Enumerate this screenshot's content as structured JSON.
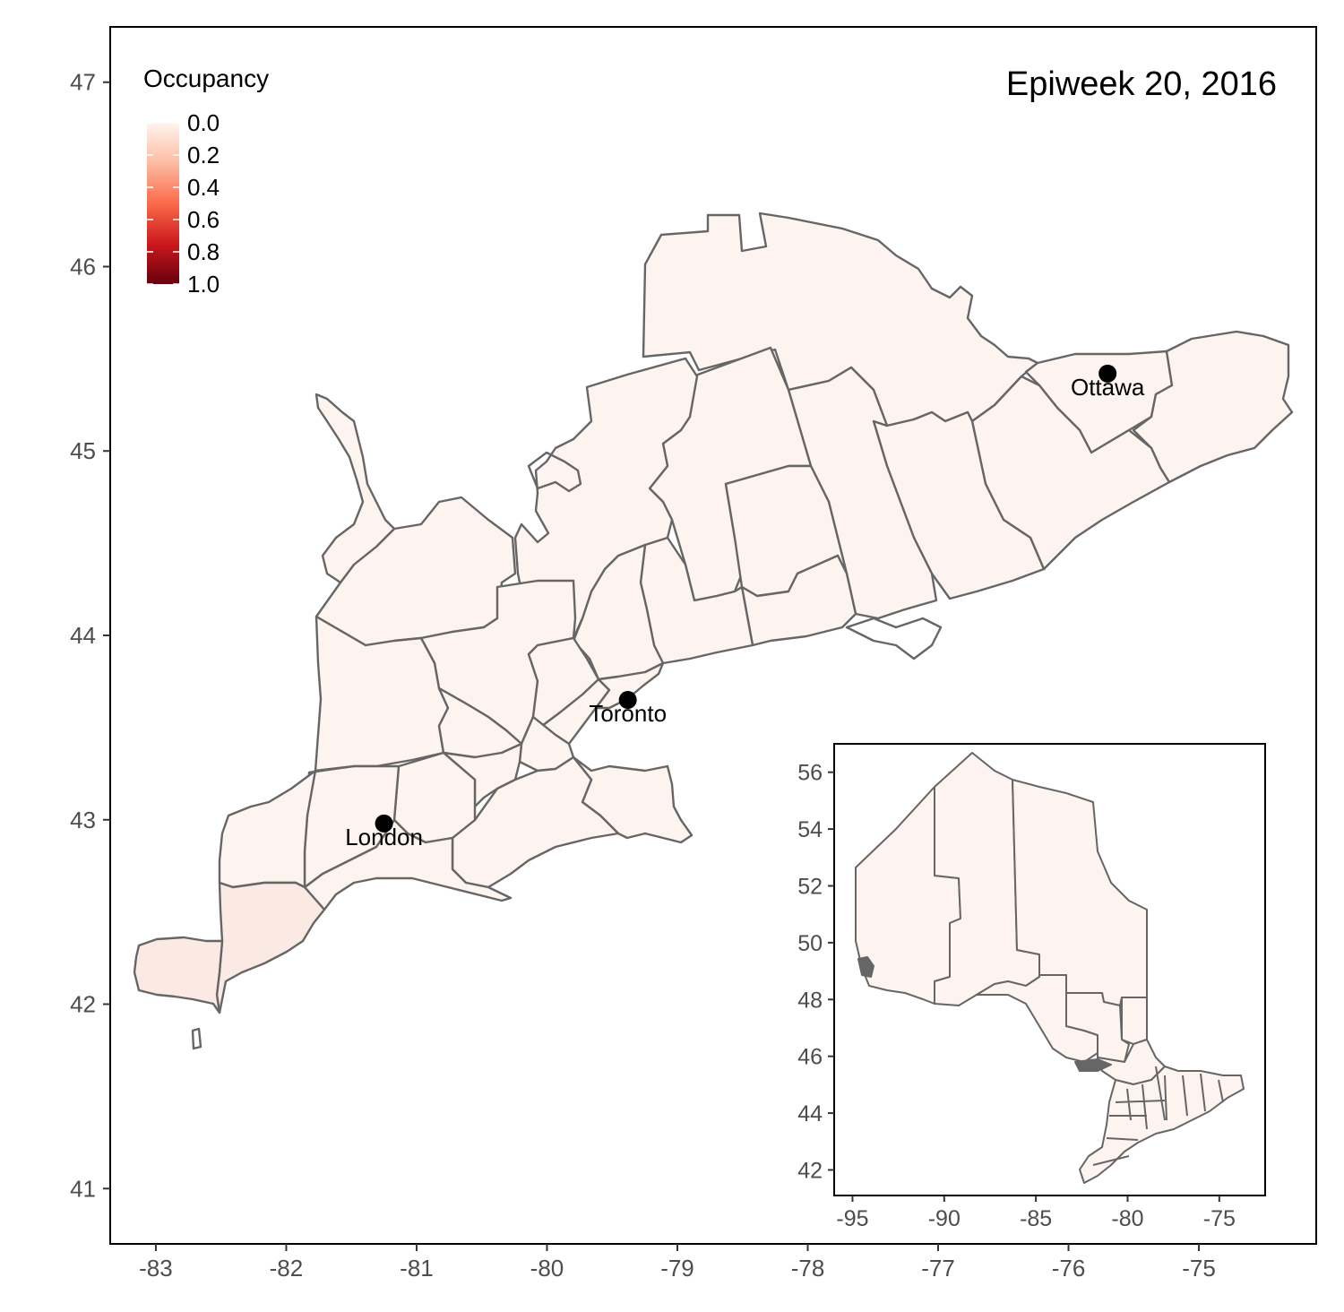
{
  "title": "Epiweek 20, 2016",
  "legend": {
    "title": "Occupancy",
    "ticks": [
      "0.0",
      "0.2",
      "0.4",
      "0.6",
      "0.8",
      "1.0"
    ],
    "colors": [
      "#fff5f0",
      "#67000d"
    ]
  },
  "main_map": {
    "x_ticks": [
      "-83",
      "-82",
      "-81",
      "-80",
      "-79",
      "-78",
      "-77",
      "-76",
      "-75"
    ],
    "y_ticks": [
      "47",
      "46",
      "45",
      "44",
      "43",
      "42",
      "41"
    ],
    "xlim": [
      -83.35,
      -74.1
    ],
    "ylim": [
      40.7,
      47.3
    ],
    "cities": [
      {
        "name": "Ottawa",
        "lon": -75.7,
        "lat": 45.42
      },
      {
        "name": "Toronto",
        "lon": -79.38,
        "lat": 43.65
      },
      {
        "name": "London",
        "lon": -81.25,
        "lat": 42.98
      }
    ],
    "fill_color": "#fdf3ef",
    "border_color": "#666666"
  },
  "inset_map": {
    "x_ticks": [
      "-95",
      "-90",
      "-85",
      "-80",
      "-75"
    ],
    "y_ticks": [
      "56",
      "54",
      "52",
      "50",
      "48",
      "46",
      "44",
      "42"
    ],
    "xlim": [
      -96.0,
      -72.5
    ],
    "ylim": [
      41.1,
      57.0
    ]
  }
}
